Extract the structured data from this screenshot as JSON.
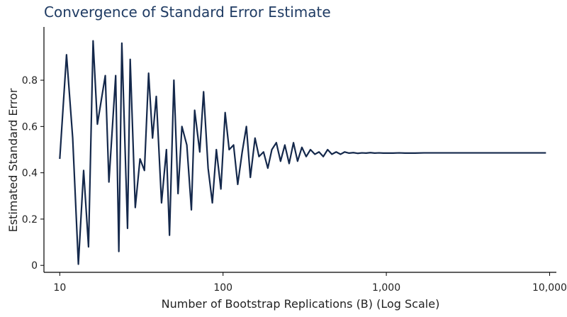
{
  "chart_data": {
    "type": "line",
    "title": "Convergence of Standard Error Estimate",
    "xlabel": "Number of Bootstrap Replications (B) (Log Scale)",
    "ylabel": "Estimated Standard Error",
    "x_scale": "log",
    "xlim": [
      8,
      11000
    ],
    "ylim": [
      -0.03,
      1.03
    ],
    "x_ticks": [
      {
        "value": 10,
        "label": "10"
      },
      {
        "value": 100,
        "label": "100"
      },
      {
        "value": 1000,
        "label": "1,000"
      },
      {
        "value": 10000,
        "label": "10,000"
      }
    ],
    "y_ticks": [
      {
        "value": 0,
        "label": "0"
      },
      {
        "value": 0.2,
        "label": "0.2"
      },
      {
        "value": 0.4,
        "label": "0.4"
      },
      {
        "value": 0.6,
        "label": "0.6"
      },
      {
        "value": 0.8,
        "label": "0.8"
      }
    ],
    "grid": false,
    "line_color": "#14284b",
    "series": [
      {
        "x": [
          10,
          11,
          12,
          13,
          14,
          15,
          16,
          17,
          19,
          20,
          22,
          23,
          24,
          26,
          27,
          29,
          31,
          33,
          35,
          37,
          39,
          42,
          45,
          47,
          50,
          53,
          56,
          60,
          64,
          67,
          72,
          76,
          81,
          86,
          91,
          97,
          103,
          109,
          116,
          123,
          131,
          139,
          147,
          157,
          166,
          177,
          188,
          199,
          212,
          225,
          239,
          254,
          270,
          286,
          304,
          323,
          343,
          365,
          387,
          411,
          437,
          464,
          493,
          524,
          556,
          591,
          628,
          667,
          708,
          752,
          799,
          849,
          902,
          958,
          1000,
          1100,
          1200,
          1300,
          1400,
          1500,
          1700,
          2000,
          3000,
          5000,
          7000,
          9500
        ],
        "values": [
          0.46,
          0.91,
          0.55,
          0.005,
          0.41,
          0.08,
          0.97,
          0.61,
          0.82,
          0.36,
          0.82,
          0.06,
          0.96,
          0.16,
          0.89,
          0.25,
          0.46,
          0.41,
          0.83,
          0.55,
          0.73,
          0.27,
          0.5,
          0.13,
          0.8,
          0.31,
          0.6,
          0.52,
          0.24,
          0.67,
          0.49,
          0.75,
          0.42,
          0.27,
          0.5,
          0.33,
          0.66,
          0.5,
          0.52,
          0.35,
          0.49,
          0.6,
          0.38,
          0.55,
          0.47,
          0.49,
          0.42,
          0.5,
          0.53,
          0.45,
          0.52,
          0.44,
          0.53,
          0.45,
          0.51,
          0.47,
          0.5,
          0.48,
          0.49,
          0.47,
          0.5,
          0.48,
          0.49,
          0.48,
          0.49,
          0.485,
          0.487,
          0.484,
          0.486,
          0.485,
          0.487,
          0.485,
          0.486,
          0.485,
          0.485,
          0.485,
          0.486,
          0.485,
          0.485,
          0.485,
          0.486,
          0.486,
          0.486,
          0.486,
          0.486,
          0.486
        ]
      }
    ]
  }
}
